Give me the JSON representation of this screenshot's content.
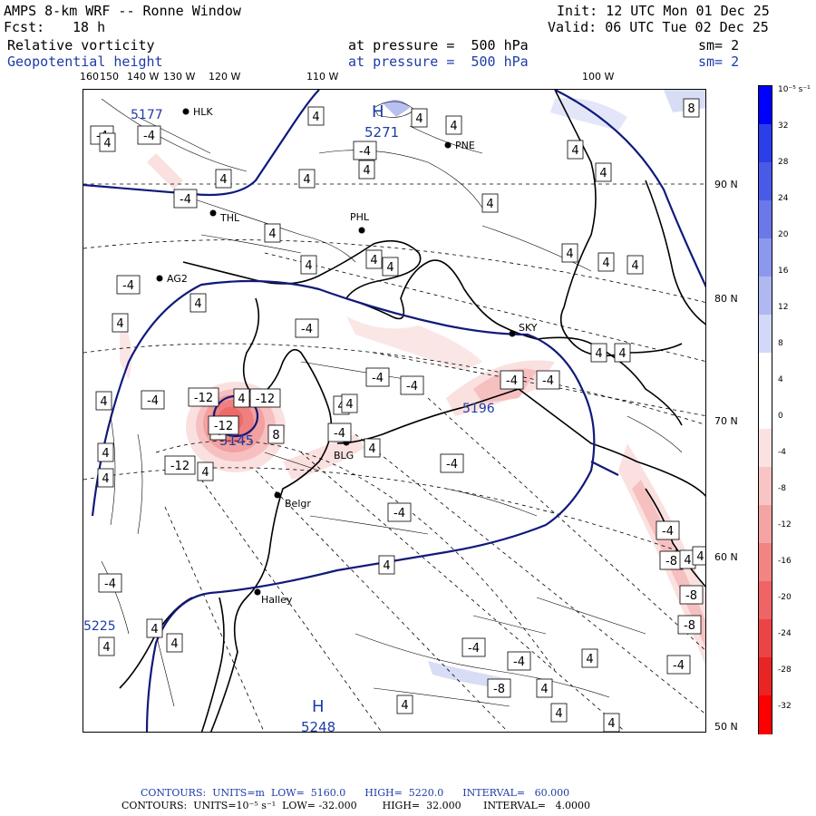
{
  "header": {
    "title": "AMPS 8-km WRF -- Ronne Window",
    "fcst_label": "Fcst:",
    "fcst_value": "18 h",
    "init": "Init: 12 UTC Mon 01 Dec 25",
    "valid": "Valid: 06 UTC Tue 02 Dec 25",
    "field1_name": "Relative vorticity",
    "field1_pressure": "at pressure =  500 hPa",
    "field1_sm": "sm= 2",
    "field2_name": "Geopotential height",
    "field2_pressure": "at pressure =  500 hPa",
    "field2_sm": "sm= 2"
  },
  "lon_labels": [
    "160",
    "150",
    "140 W",
    "130 W",
    "120 W",
    "110 W",
    "100 W"
  ],
  "lat_labels": [
    "90 N",
    "80 N",
    "70 N",
    "60 N",
    "50 N"
  ],
  "stations": [
    "HLK",
    "PNE",
    "THL",
    "PHL",
    "AG2",
    "SKY",
    "BLG",
    "Belgr",
    "Halley"
  ],
  "highs": [
    {
      "letter": "H",
      "value": "5271"
    },
    {
      "letter": "H",
      "value": "5248"
    }
  ],
  "low_center_value": "5145",
  "mid_height_label": "5196",
  "edge_labels": [
    "5177",
    "5225"
  ],
  "contour_labels": [
    "4",
    "-4",
    "8",
    "-8",
    "-12"
  ],
  "colorbar": {
    "unit": "10⁻⁵ s⁻¹",
    "ticks": [
      "32",
      "28",
      "24",
      "20",
      "16",
      "12",
      "8",
      "4",
      "0",
      "-4",
      "-8",
      "-12",
      "-16",
      "-20",
      "-24",
      "-28",
      "-32"
    ],
    "colors": [
      "#0000ff",
      "#2a3fe8",
      "#4a5ae8",
      "#6a78ea",
      "#8c98ee",
      "#b0b8f2",
      "#d2d8f8",
      "#ffffff",
      "#ffffff",
      "#fbe2e2",
      "#f8c4c4",
      "#f5a4a4",
      "#f28484",
      "#ef6464",
      "#ec4444",
      "#e92424",
      "#ff0000"
    ]
  },
  "footer": {
    "line1": "CONTOURS:  UNITS=m  LOW=  5160.0      HIGH=  5220.0      INTERVAL=   60.000",
    "line2": "CONTOURS:  UNITS=10⁻⁵ s⁻¹  LOW= -32.000        HIGH=  32.000       INTERVAL=   4.0000"
  }
}
